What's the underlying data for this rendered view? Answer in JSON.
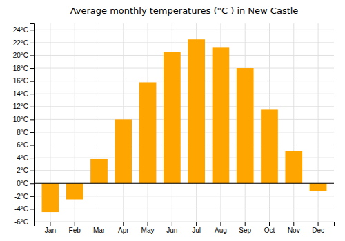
{
  "chart_data": {
    "type": "bar",
    "title": "Average monthly temperatures (°C ) in New Castle",
    "categories": [
      "Jan",
      "Feb",
      "Mar",
      "Apr",
      "May",
      "Jun",
      "Jul",
      "Aug",
      "Sep",
      "Oct",
      "Nov",
      "Dec"
    ],
    "values": [
      -4.5,
      -2.5,
      3.8,
      10.0,
      15.8,
      20.5,
      22.5,
      21.3,
      18.0,
      11.5,
      5.0,
      -1.2
    ],
    "color": "#FFA500",
    "ylim": [
      -6,
      25
    ],
    "yticks": [
      {
        "value": -6,
        "label": "-6°C"
      },
      {
        "value": -4,
        "label": "-4°C"
      },
      {
        "value": -2,
        "label": "-2°C"
      },
      {
        "value": 0,
        "label": "0°C"
      },
      {
        "value": 2,
        "label": "2°C"
      },
      {
        "value": 4,
        "label": "4°C"
      },
      {
        "value": 6,
        "label": "6°C"
      },
      {
        "value": 8,
        "label": "8°C"
      },
      {
        "value": 10,
        "label": "10°C"
      },
      {
        "value": 12,
        "label": "12°C"
      },
      {
        "value": 14,
        "label": "14°C"
      },
      {
        "value": 16,
        "label": "16°C"
      },
      {
        "value": 18,
        "label": "18°C"
      },
      {
        "value": 20,
        "label": "20°C"
      },
      {
        "value": 22,
        "label": "22°C"
      },
      {
        "value": 24,
        "label": "24°C"
      }
    ],
    "grid": true
  }
}
